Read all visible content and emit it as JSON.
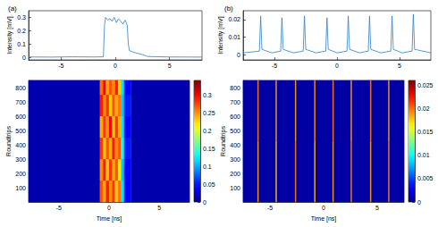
{
  "chart_data": [
    {
      "type": "line",
      "title": "(a)",
      "ylabel": "Intensity [mV]",
      "color": "#2f7fc1",
      "grid": false,
      "xlim": [
        -8,
        8
      ],
      "xticks": [
        -5,
        0,
        5
      ],
      "ylim": [
        -0.02,
        0.35
      ],
      "yticks": [
        0,
        0.1,
        0.2,
        0.3
      ],
      "x": [
        -8,
        -6,
        -4,
        -2,
        -1.1,
        -1.0,
        -0.9,
        -0.7,
        -0.5,
        -0.3,
        -0.1,
        0.1,
        0.3,
        0.5,
        0.7,
        0.9,
        1.1,
        1.2,
        1.3,
        1.6,
        2.0,
        2.5,
        3.0,
        5,
        8
      ],
      "values": [
        0.002,
        0.001,
        0.003,
        0.002,
        0.003,
        0.24,
        0.3,
        0.28,
        0.29,
        0.27,
        0.3,
        0.26,
        0.29,
        0.27,
        0.25,
        0.28,
        0.24,
        0.1,
        0.05,
        0.04,
        0.03,
        0.02,
        0.005,
        0.002,
        0.001
      ]
    },
    {
      "type": "heatmap",
      "xlabel": "Time [ns]",
      "ylabel": "Roundtrips",
      "grid": false,
      "xlim": [
        -8,
        8
      ],
      "xticks": [
        -5,
        0,
        5
      ],
      "ylim": [
        0,
        850
      ],
      "yticks": [
        100,
        200,
        300,
        400,
        500,
        600,
        700,
        800
      ],
      "x_edges": [
        -8,
        -0.9,
        -0.6,
        -0.3,
        0,
        0.3,
        0.6,
        0.9,
        1.2,
        1.5,
        2.2,
        8
      ],
      "y_edges": [
        0,
        150,
        300,
        450,
        600,
        750,
        850
      ],
      "cells": [
        [
          0.01,
          0.27,
          0.24,
          0.29,
          0.25,
          0.28,
          0.23,
          0.26,
          0.12,
          0.04,
          0.01
        ],
        [
          0.01,
          0.25,
          0.29,
          0.23,
          0.28,
          0.24,
          0.27,
          0.22,
          0.11,
          0.04,
          0.01
        ],
        [
          0.01,
          0.28,
          0.23,
          0.27,
          0.24,
          0.29,
          0.25,
          0.27,
          0.13,
          0.05,
          0.01
        ],
        [
          0.01,
          0.24,
          0.28,
          0.25,
          0.3,
          0.23,
          0.28,
          0.24,
          0.12,
          0.04,
          0.01
        ],
        [
          0.01,
          0.29,
          0.25,
          0.28,
          0.23,
          0.27,
          0.24,
          0.26,
          0.11,
          0.05,
          0.01
        ],
        [
          0.01,
          0.26,
          0.3,
          0.24,
          0.27,
          0.25,
          0.29,
          0.23,
          0.12,
          0.04,
          0.01
        ]
      ],
      "colorbar_range": [
        0,
        0.34
      ],
      "colorbar_ticks": [
        0,
        0.05,
        0.1,
        0.15,
        0.2,
        0.25,
        0.3
      ]
    },
    {
      "type": "line",
      "title": "(b)",
      "ylabel": "Intensity [mV]",
      "color": "#2f7fc1",
      "grid": false,
      "xlim": [
        -7.5,
        7.5
      ],
      "xticks": [
        -5,
        0,
        5
      ],
      "ylim": [
        -0.003,
        0.025
      ],
      "yticks": [
        0,
        0.01,
        0.02
      ],
      "x": [
        -7.5,
        -6.2,
        -6.1,
        -6.0,
        -5.2,
        -4.5,
        -4.4,
        -4.3,
        -3.5,
        -2.7,
        -2.6,
        -2.5,
        -1.7,
        -0.9,
        -0.8,
        -0.7,
        0.0,
        0.8,
        0.9,
        1.0,
        1.8,
        2.5,
        2.6,
        2.7,
        3.5,
        4.3,
        4.4,
        4.5,
        5.2,
        6.0,
        6.1,
        6.2,
        7.5
      ],
      "values": [
        0.001,
        0.002,
        0.022,
        0.003,
        0.001,
        0.002,
        0.021,
        0.003,
        0.001,
        0.002,
        0.022,
        0.003,
        0.001,
        0.002,
        0.021,
        0.003,
        0.001,
        0.002,
        0.022,
        0.003,
        0.001,
        0.002,
        0.022,
        0.003,
        0.001,
        0.002,
        0.022,
        0.003,
        0.001,
        0.002,
        0.023,
        0.003,
        0.001
      ]
    },
    {
      "type": "heatmap",
      "xlabel": "Time [ns]",
      "ylabel": "Roundtrips",
      "grid": false,
      "xlim": [
        -7.5,
        7.5
      ],
      "xticks": [
        -5,
        0,
        5
      ],
      "ylim": [
        0,
        850
      ],
      "yticks": [
        100,
        200,
        300,
        400,
        500,
        600,
        700,
        800
      ],
      "x_edges": [
        -7.5,
        -6.15,
        -6.05,
        -4.45,
        -4.35,
        -2.65,
        -2.55,
        -0.85,
        -0.75,
        0.85,
        0.95,
        2.55,
        2.65,
        4.35,
        4.45,
        6.05,
        6.15,
        7.5
      ],
      "y_edges": [
        0,
        425,
        850
      ],
      "cells": [
        [
          0.0005,
          0.019,
          0.0005,
          0.018,
          0.0005,
          0.02,
          0.0005,
          0.018,
          0.0005,
          0.019,
          0.0005,
          0.02,
          0.0005,
          0.019,
          0.0005,
          0.02,
          0.0005
        ],
        [
          0.0005,
          0.02,
          0.0005,
          0.019,
          0.0005,
          0.019,
          0.0005,
          0.019,
          0.0005,
          0.02,
          0.0005,
          0.019,
          0.0005,
          0.02,
          0.0005,
          0.019,
          0.0005
        ]
      ],
      "colorbar_range": [
        0,
        0.026
      ],
      "colorbar_ticks": [
        0,
        0.005,
        0.01,
        0.015,
        0.02,
        0.025
      ]
    }
  ]
}
